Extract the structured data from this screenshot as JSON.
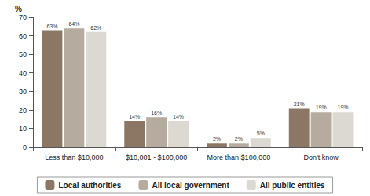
{
  "chart_data": {
    "type": "bar",
    "ylabel": "%",
    "categories": [
      "Less than $10,000",
      "$10,001 - $100,000",
      "More than $100,000",
      "Don't know"
    ],
    "series": [
      {
        "name": "Local authorities",
        "color": "#8b7763",
        "values": [
          63,
          14,
          2,
          21
        ],
        "value_labels": [
          "63%",
          "14%",
          "2%",
          "21%"
        ]
      },
      {
        "name": "All local government",
        "color": "#b5ab9e",
        "values": [
          64,
          16,
          2,
          19
        ],
        "value_labels": [
          "64%",
          "16%",
          "2%",
          "19%"
        ]
      },
      {
        "name": "All public entities",
        "color": "#dcd8d2",
        "values": [
          62,
          14,
          5,
          19
        ],
        "value_labels": [
          "62%",
          "14%",
          "5%",
          "19%"
        ]
      }
    ],
    "ylim": [
      0,
      70
    ],
    "yticks": [
      0,
      10,
      20,
      30,
      40,
      50,
      60,
      70
    ],
    "grid": false,
    "legend": "bottom",
    "data_labels": true
  }
}
